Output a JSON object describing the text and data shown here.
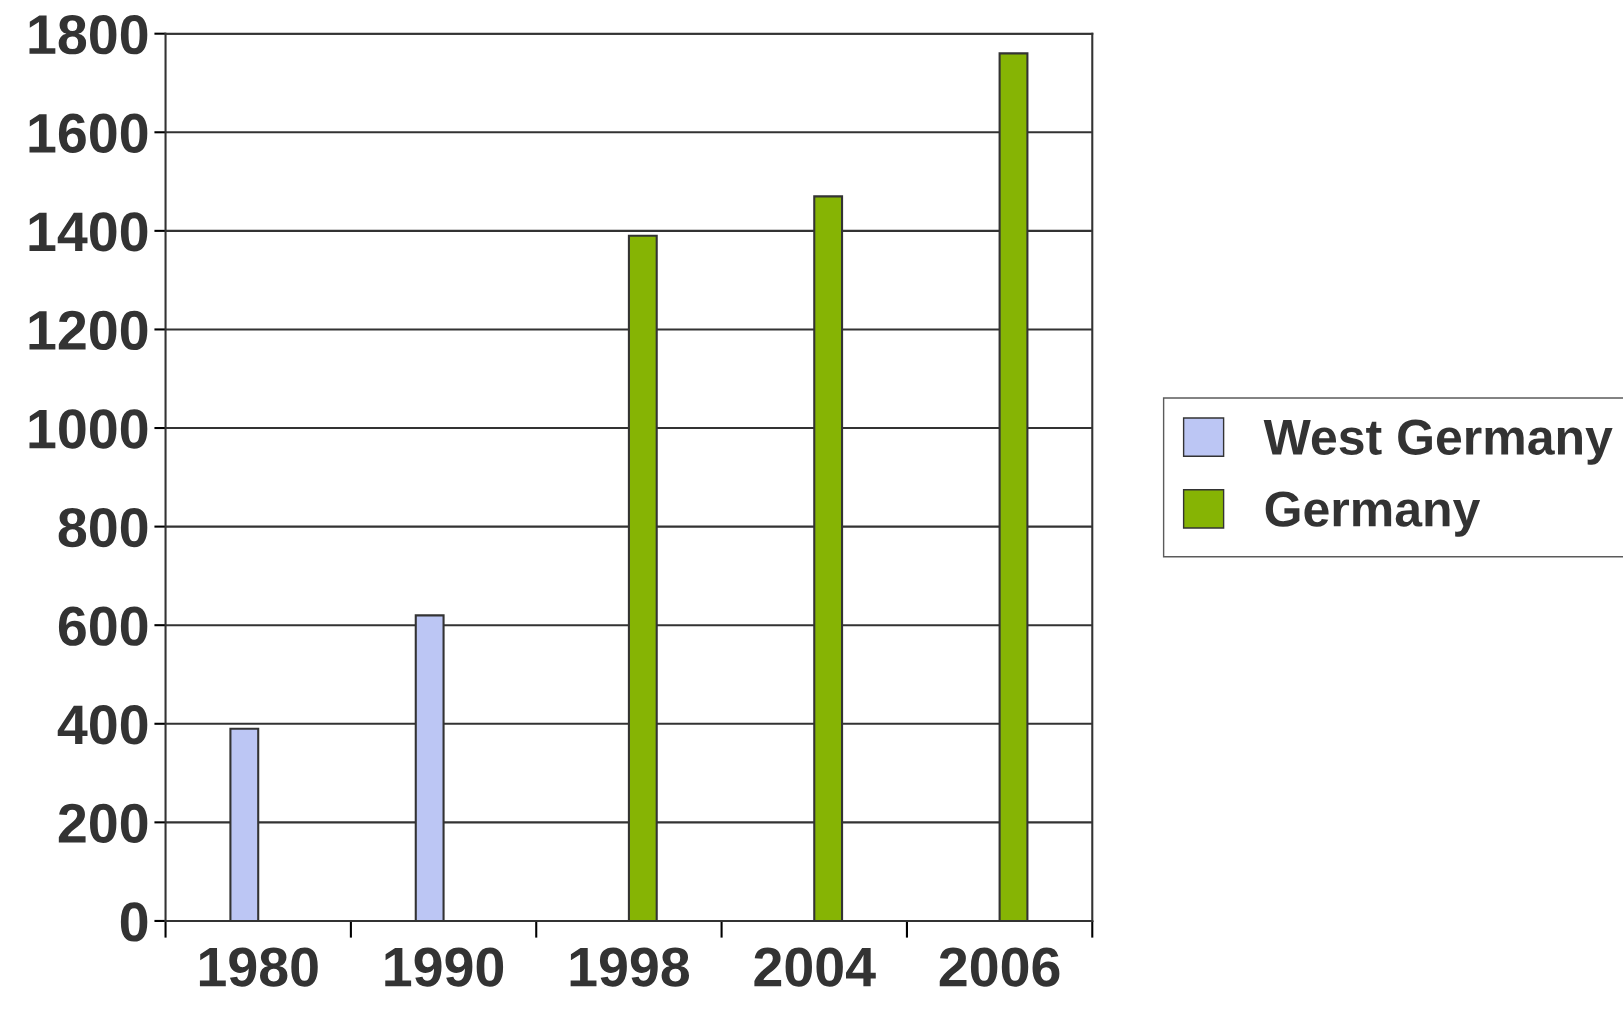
{
  "chart_data": {
    "type": "bar",
    "categories": [
      "1980",
      "1990",
      "1998",
      "2004",
      "2006"
    ],
    "series": [
      {
        "name": "West Germany",
        "color": "#bcc6f4",
        "values": [
          390,
          620,
          null,
          null,
          null
        ]
      },
      {
        "name": "Germany",
        "color": "#86b404",
        "values": [
          null,
          null,
          1390,
          1470,
          1760
        ]
      }
    ],
    "ylim": [
      0,
      1800
    ],
    "yticks": [
      0,
      200,
      400,
      600,
      800,
      1000,
      1200,
      1400,
      1600,
      1800
    ],
    "grid": "y",
    "legend": "right"
  }
}
